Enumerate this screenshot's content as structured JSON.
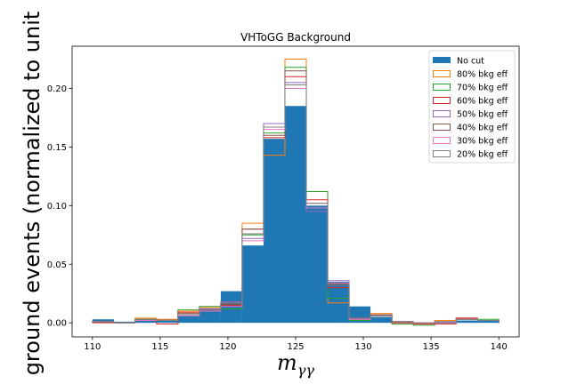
{
  "chart_data": {
    "type": "histogram",
    "title": "VHToGG Background",
    "xlabel_base": "m",
    "xlabel_sub": "γγ",
    "ylabel": "ground events (normalized to unit",
    "xlim": [
      108.5,
      141.5
    ],
    "ylim": [
      -0.012,
      0.236
    ],
    "xticks": [
      110,
      115,
      120,
      125,
      130,
      135,
      140
    ],
    "yticks": [
      0.0,
      0.05,
      0.1,
      0.15,
      0.2
    ],
    "ytick_labels": [
      "0.00",
      "0.05",
      "0.10",
      "0.15",
      "0.20"
    ],
    "bin_edges": [
      110,
      111.5789,
      113.1579,
      114.7368,
      116.3158,
      117.8947,
      119.4737,
      121.0526,
      122.6316,
      124.2105,
      125.7895,
      127.3684,
      128.9474,
      130.5263,
      132.1053,
      133.6842,
      135.2632,
      136.8421,
      138.4211,
      140
    ],
    "legend_position": "upper right",
    "series": [
      {
        "name": "No cut",
        "style": "filled",
        "color": "#1f77b4",
        "values": [
          0.003,
          0.001,
          0.003,
          0.003,
          0.006,
          0.012,
          0.027,
          0.066,
          0.157,
          0.185,
          0.1,
          0.035,
          0.014,
          0.005,
          0.001,
          0.0,
          0.001,
          0.002,
          0.002
        ]
      },
      {
        "name": "80% bkg eff",
        "style": "step",
        "color": "#ff7f0e",
        "values": [
          0.001,
          0.0,
          0.004,
          0.003,
          0.01,
          0.013,
          0.018,
          0.085,
          0.143,
          0.225,
          0.112,
          0.017,
          0.003,
          0.008,
          0.001,
          0.0,
          0.002,
          0.004,
          0.002
        ]
      },
      {
        "name": "70% bkg eff",
        "style": "step",
        "color": "#2ca02c",
        "values": [
          0.001,
          0.0,
          0.003,
          0.002,
          0.011,
          0.014,
          0.012,
          0.075,
          0.162,
          0.218,
          0.112,
          0.021,
          0.002,
          0.006,
          -0.001,
          -0.002,
          0.0,
          0.003,
          0.003
        ]
      },
      {
        "name": "60% bkg eff",
        "style": "step",
        "color": "#d62728",
        "values": [
          0.0,
          0.0,
          0.002,
          -0.001,
          0.009,
          0.011,
          0.015,
          0.08,
          0.158,
          0.21,
          0.105,
          0.03,
          0.004,
          0.007,
          0.0,
          -0.001,
          -0.001,
          0.004,
          0.002
        ]
      },
      {
        "name": "50% bkg eff",
        "style": "step",
        "color": "#9467bd",
        "values": [
          0.001,
          0.0,
          0.002,
          0.002,
          0.007,
          0.012,
          0.018,
          0.072,
          0.17,
          0.205,
          0.095,
          0.036,
          0.003,
          0.006,
          0.001,
          0.0,
          0.0,
          0.003,
          0.002
        ]
      },
      {
        "name": "40% bkg eff",
        "style": "step",
        "color": "#8c564b",
        "values": [
          0.001,
          0.0,
          0.003,
          0.002,
          0.008,
          0.011,
          0.016,
          0.08,
          0.16,
          0.215,
          0.102,
          0.033,
          0.004,
          0.007,
          0.001,
          0.0,
          0.001,
          0.003,
          0.002
        ]
      },
      {
        "name": "30% bkg eff",
        "style": "step",
        "color": "#e377c2",
        "values": [
          0.001,
          0.0,
          0.002,
          0.002,
          0.006,
          0.01,
          0.014,
          0.07,
          0.165,
          0.2,
          0.098,
          0.034,
          0.003,
          0.006,
          0.001,
          0.0,
          0.001,
          0.003,
          0.002
        ]
      },
      {
        "name": "20% bkg eff",
        "style": "step",
        "color": "#7f7f7f",
        "values": [
          0.001,
          0.0,
          0.003,
          0.002,
          0.007,
          0.011,
          0.017,
          0.076,
          0.167,
          0.203,
          0.102,
          0.032,
          0.004,
          0.006,
          0.001,
          0.0,
          0.001,
          0.003,
          0.002
        ]
      }
    ]
  }
}
